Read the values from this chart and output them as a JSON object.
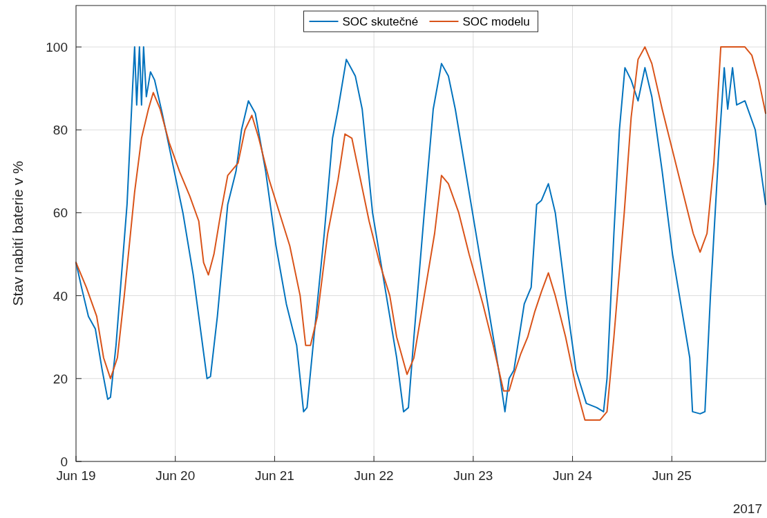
{
  "chart_data": {
    "type": "line",
    "ylabel": "Stav nabití baterie v %",
    "annotations": [
      "2017"
    ],
    "xlim": [
      "2017-06-19T00:00",
      "2017-06-25T22:40"
    ],
    "xticks": [
      {
        "value": "2017-06-19",
        "label": "Jun 19"
      },
      {
        "value": "2017-06-20",
        "label": "Jun 20"
      },
      {
        "value": "2017-06-21",
        "label": "Jun 21"
      },
      {
        "value": "2017-06-22",
        "label": "Jun 22"
      },
      {
        "value": "2017-06-23",
        "label": "Jun 23"
      },
      {
        "value": "2017-06-24",
        "label": "Jun 24"
      },
      {
        "value": "2017-06-25",
        "label": "Jun 25"
      }
    ],
    "ylim": [
      0,
      110
    ],
    "yticks": [
      0,
      20,
      40,
      60,
      80,
      100
    ],
    "grid": true,
    "legend": "top",
    "series": [
      {
        "name": "SOC skutečné",
        "color": "#0072bd",
        "x": [
          "2017-06-19T00:00",
          "2017-06-19T01:20",
          "2017-06-19T03:00",
          "2017-06-19T04:40",
          "2017-06-19T06:20",
          "2017-06-19T07:40",
          "2017-06-19T08:20",
          "2017-06-19T09:40",
          "2017-06-19T11:00",
          "2017-06-19T12:20",
          "2017-06-19T13:40",
          "2017-06-19T14:10",
          "2017-06-19T14:40",
          "2017-06-19T15:20",
          "2017-06-19T15:50",
          "2017-06-19T16:20",
          "2017-06-19T17:00",
          "2017-06-19T18:00",
          "2017-06-19T19:00",
          "2017-06-19T20:50",
          "2017-06-19T23:20",
          "2017-06-20T01:50",
          "2017-06-20T04:20",
          "2017-06-20T06:20",
          "2017-06-20T07:40",
          "2017-06-20T08:30",
          "2017-06-20T10:10",
          "2017-06-20T12:40",
          "2017-06-20T14:40",
          "2017-06-20T16:00",
          "2017-06-20T17:40",
          "2017-06-20T19:20",
          "2017-06-20T21:50",
          "2017-06-21T00:20",
          "2017-06-21T02:50",
          "2017-06-21T05:20",
          "2017-06-21T07:00",
          "2017-06-21T07:50",
          "2017-06-21T09:30",
          "2017-06-21T12:00",
          "2017-06-21T14:00",
          "2017-06-21T15:20",
          "2017-06-21T17:20",
          "2017-06-21T19:30",
          "2017-06-21T21:10",
          "2017-06-21T23:40",
          "2017-06-22T02:10",
          "2017-06-22T05:30",
          "2017-06-22T07:10",
          "2017-06-22T08:20",
          "2017-06-22T09:40",
          "2017-06-22T12:10",
          "2017-06-22T14:20",
          "2017-06-22T16:20",
          "2017-06-22T18:00",
          "2017-06-22T19:40",
          "2017-06-22T23:00",
          "2017-06-23T02:20",
          "2017-06-23T04:50",
          "2017-06-23T06:30",
          "2017-06-23T07:40",
          "2017-06-23T08:40",
          "2017-06-23T09:50",
          "2017-06-23T12:20",
          "2017-06-23T14:00",
          "2017-06-23T15:20",
          "2017-06-23T16:30",
          "2017-06-23T18:10",
          "2017-06-23T19:50",
          "2017-06-23T22:20",
          "2017-06-24T00:50",
          "2017-06-24T03:20",
          "2017-06-24T05:50",
          "2017-06-24T07:30",
          "2017-06-24T08:20",
          "2017-06-24T10:00",
          "2017-06-24T11:20",
          "2017-06-24T12:40",
          "2017-06-24T14:10",
          "2017-06-24T15:50",
          "2017-06-24T17:30",
          "2017-06-24T19:10",
          "2017-06-24T21:40",
          "2017-06-25T00:10",
          "2017-06-25T02:40",
          "2017-06-25T04:20",
          "2017-06-25T05:00",
          "2017-06-25T06:50",
          "2017-06-25T08:00",
          "2017-06-25T09:20",
          "2017-06-25T11:20",
          "2017-06-25T12:40",
          "2017-06-25T13:30",
          "2017-06-25T14:40",
          "2017-06-25T15:40",
          "2017-06-25T17:40",
          "2017-06-25T20:10",
          "2017-06-25T22:40"
        ],
        "values": [
          48,
          42,
          35,
          32,
          22,
          15,
          15.5,
          28,
          45,
          62,
          90,
          100,
          86,
          100,
          86,
          100,
          88,
          94,
          92,
          84,
          72,
          60,
          45,
          30,
          20,
          20.5,
          35,
          62,
          70,
          80,
          87,
          84,
          70,
          52,
          38,
          28,
          12,
          13,
          30,
          55,
          78,
          85,
          97,
          93,
          85,
          60,
          45,
          25,
          12,
          13,
          30,
          60,
          85,
          96,
          93,
          85,
          65,
          45,
          30,
          20,
          12,
          20,
          22,
          38,
          42,
          62,
          63,
          67,
          60,
          40,
          22,
          14,
          13,
          12,
          20,
          55,
          80,
          95,
          92,
          87,
          95,
          88,
          70,
          50,
          35,
          25,
          12,
          11.5,
          12,
          40,
          75,
          95,
          85,
          95,
          86,
          87,
          80,
          62
        ]
      },
      {
        "name": "SOC modelu",
        "color": "#d95319",
        "x": [
          "2017-06-19T00:00",
          "2017-06-19T02:30",
          "2017-06-19T05:00",
          "2017-06-19T06:40",
          "2017-06-19T08:20",
          "2017-06-19T10:00",
          "2017-06-19T11:40",
          "2017-06-19T14:10",
          "2017-06-19T15:50",
          "2017-06-19T17:30",
          "2017-06-19T18:40",
          "2017-06-19T20:20",
          "2017-06-19T22:30",
          "2017-06-20T01:00",
          "2017-06-20T03:30",
          "2017-06-20T05:40",
          "2017-06-20T06:50",
          "2017-06-20T08:00",
          "2017-06-20T09:20",
          "2017-06-20T11:00",
          "2017-06-20T12:40",
          "2017-06-20T15:10",
          "2017-06-20T16:50",
          "2017-06-20T18:30",
          "2017-06-20T20:10",
          "2017-06-20T22:40",
          "2017-06-21T01:10",
          "2017-06-21T03:40",
          "2017-06-21T06:10",
          "2017-06-21T07:30",
          "2017-06-21T08:40",
          "2017-06-21T10:20",
          "2017-06-21T12:50",
          "2017-06-21T15:20",
          "2017-06-21T17:00",
          "2017-06-21T18:40",
          "2017-06-21T20:20",
          "2017-06-21T22:50",
          "2017-06-22T01:20",
          "2017-06-22T03:50",
          "2017-06-22T05:30",
          "2017-06-22T08:00",
          "2017-06-22T09:40",
          "2017-06-22T12:10",
          "2017-06-22T14:40",
          "2017-06-22T16:20",
          "2017-06-22T18:00",
          "2017-06-22T20:30",
          "2017-06-22T23:00",
          "2017-06-23T02:20",
          "2017-06-23T04:50",
          "2017-06-23T07:20",
          "2017-06-23T08:40",
          "2017-06-23T09:50",
          "2017-06-23T11:30",
          "2017-06-23T13:10",
          "2017-06-23T14:50",
          "2017-06-23T16:30",
          "2017-06-23T18:10",
          "2017-06-23T19:50",
          "2017-06-23T22:20",
          "2017-06-24T00:50",
          "2017-06-24T03:00",
          "2017-06-24T06:40",
          "2017-06-24T08:20",
          "2017-06-24T10:00",
          "2017-06-24T12:30",
          "2017-06-24T14:10",
          "2017-06-24T15:50",
          "2017-06-24T17:30",
          "2017-06-24T19:10",
          "2017-06-24T21:40",
          "2017-06-25T00:10",
          "2017-06-25T02:40",
          "2017-06-25T05:10",
          "2017-06-25T06:50",
          "2017-06-25T08:30",
          "2017-06-25T10:10",
          "2017-06-25T11:50",
          "2017-06-25T17:40",
          "2017-06-25T19:20",
          "2017-06-25T21:00",
          "2017-06-25T22:40"
        ],
        "values": [
          48,
          42,
          35,
          25,
          20,
          25,
          40,
          65,
          78,
          85,
          89,
          85,
          77,
          70,
          64,
          58,
          48,
          45,
          50,
          60,
          69,
          72,
          80,
          83.5,
          78,
          68,
          60,
          52,
          40,
          28,
          28,
          35,
          55,
          68,
          79,
          78,
          70,
          58,
          48,
          40,
          30,
          21,
          25,
          40,
          55,
          69,
          67,
          60,
          50,
          38,
          28,
          17,
          17,
          21,
          26,
          30,
          36,
          41,
          45.5,
          40,
          30,
          18,
          10,
          10,
          12,
          30,
          60,
          83,
          97,
          100,
          96,
          85,
          75,
          65,
          55,
          50.5,
          55,
          72,
          100,
          100,
          98,
          92,
          84
        ]
      }
    ]
  }
}
